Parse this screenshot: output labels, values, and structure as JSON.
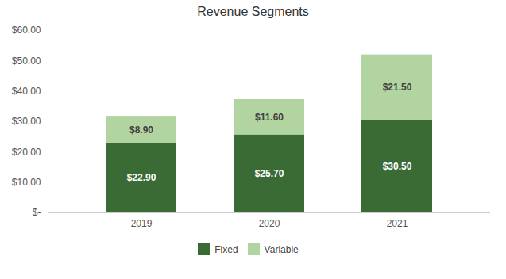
{
  "chart_data": {
    "type": "bar",
    "stacked": true,
    "title": "Revenue Segments",
    "categories": [
      "2019",
      "2020",
      "2021"
    ],
    "series": [
      {
        "name": "Fixed",
        "color": "#3a6b35",
        "values": [
          22.9,
          25.7,
          30.5
        ],
        "value_labels": [
          "$22.90",
          "$25.70",
          "$30.50"
        ]
      },
      {
        "name": "Variable",
        "color": "#b2d4a0",
        "values": [
          8.9,
          11.6,
          21.5
        ],
        "value_labels": [
          "$8.90",
          "$11.60",
          "$21.50"
        ]
      }
    ],
    "ylim": [
      0,
      60
    ],
    "yticks": [
      {
        "value": 0,
        "label": "$-"
      },
      {
        "value": 10,
        "label": "$10.00"
      },
      {
        "value": 20,
        "label": "$20.00"
      },
      {
        "value": 30,
        "label": "$30.00"
      },
      {
        "value": 40,
        "label": "$40.00"
      },
      {
        "value": 50,
        "label": "$50.00"
      },
      {
        "value": 60,
        "label": "$60.00"
      }
    ],
    "data_labels": true,
    "grid": false,
    "legend": "bottom"
  }
}
